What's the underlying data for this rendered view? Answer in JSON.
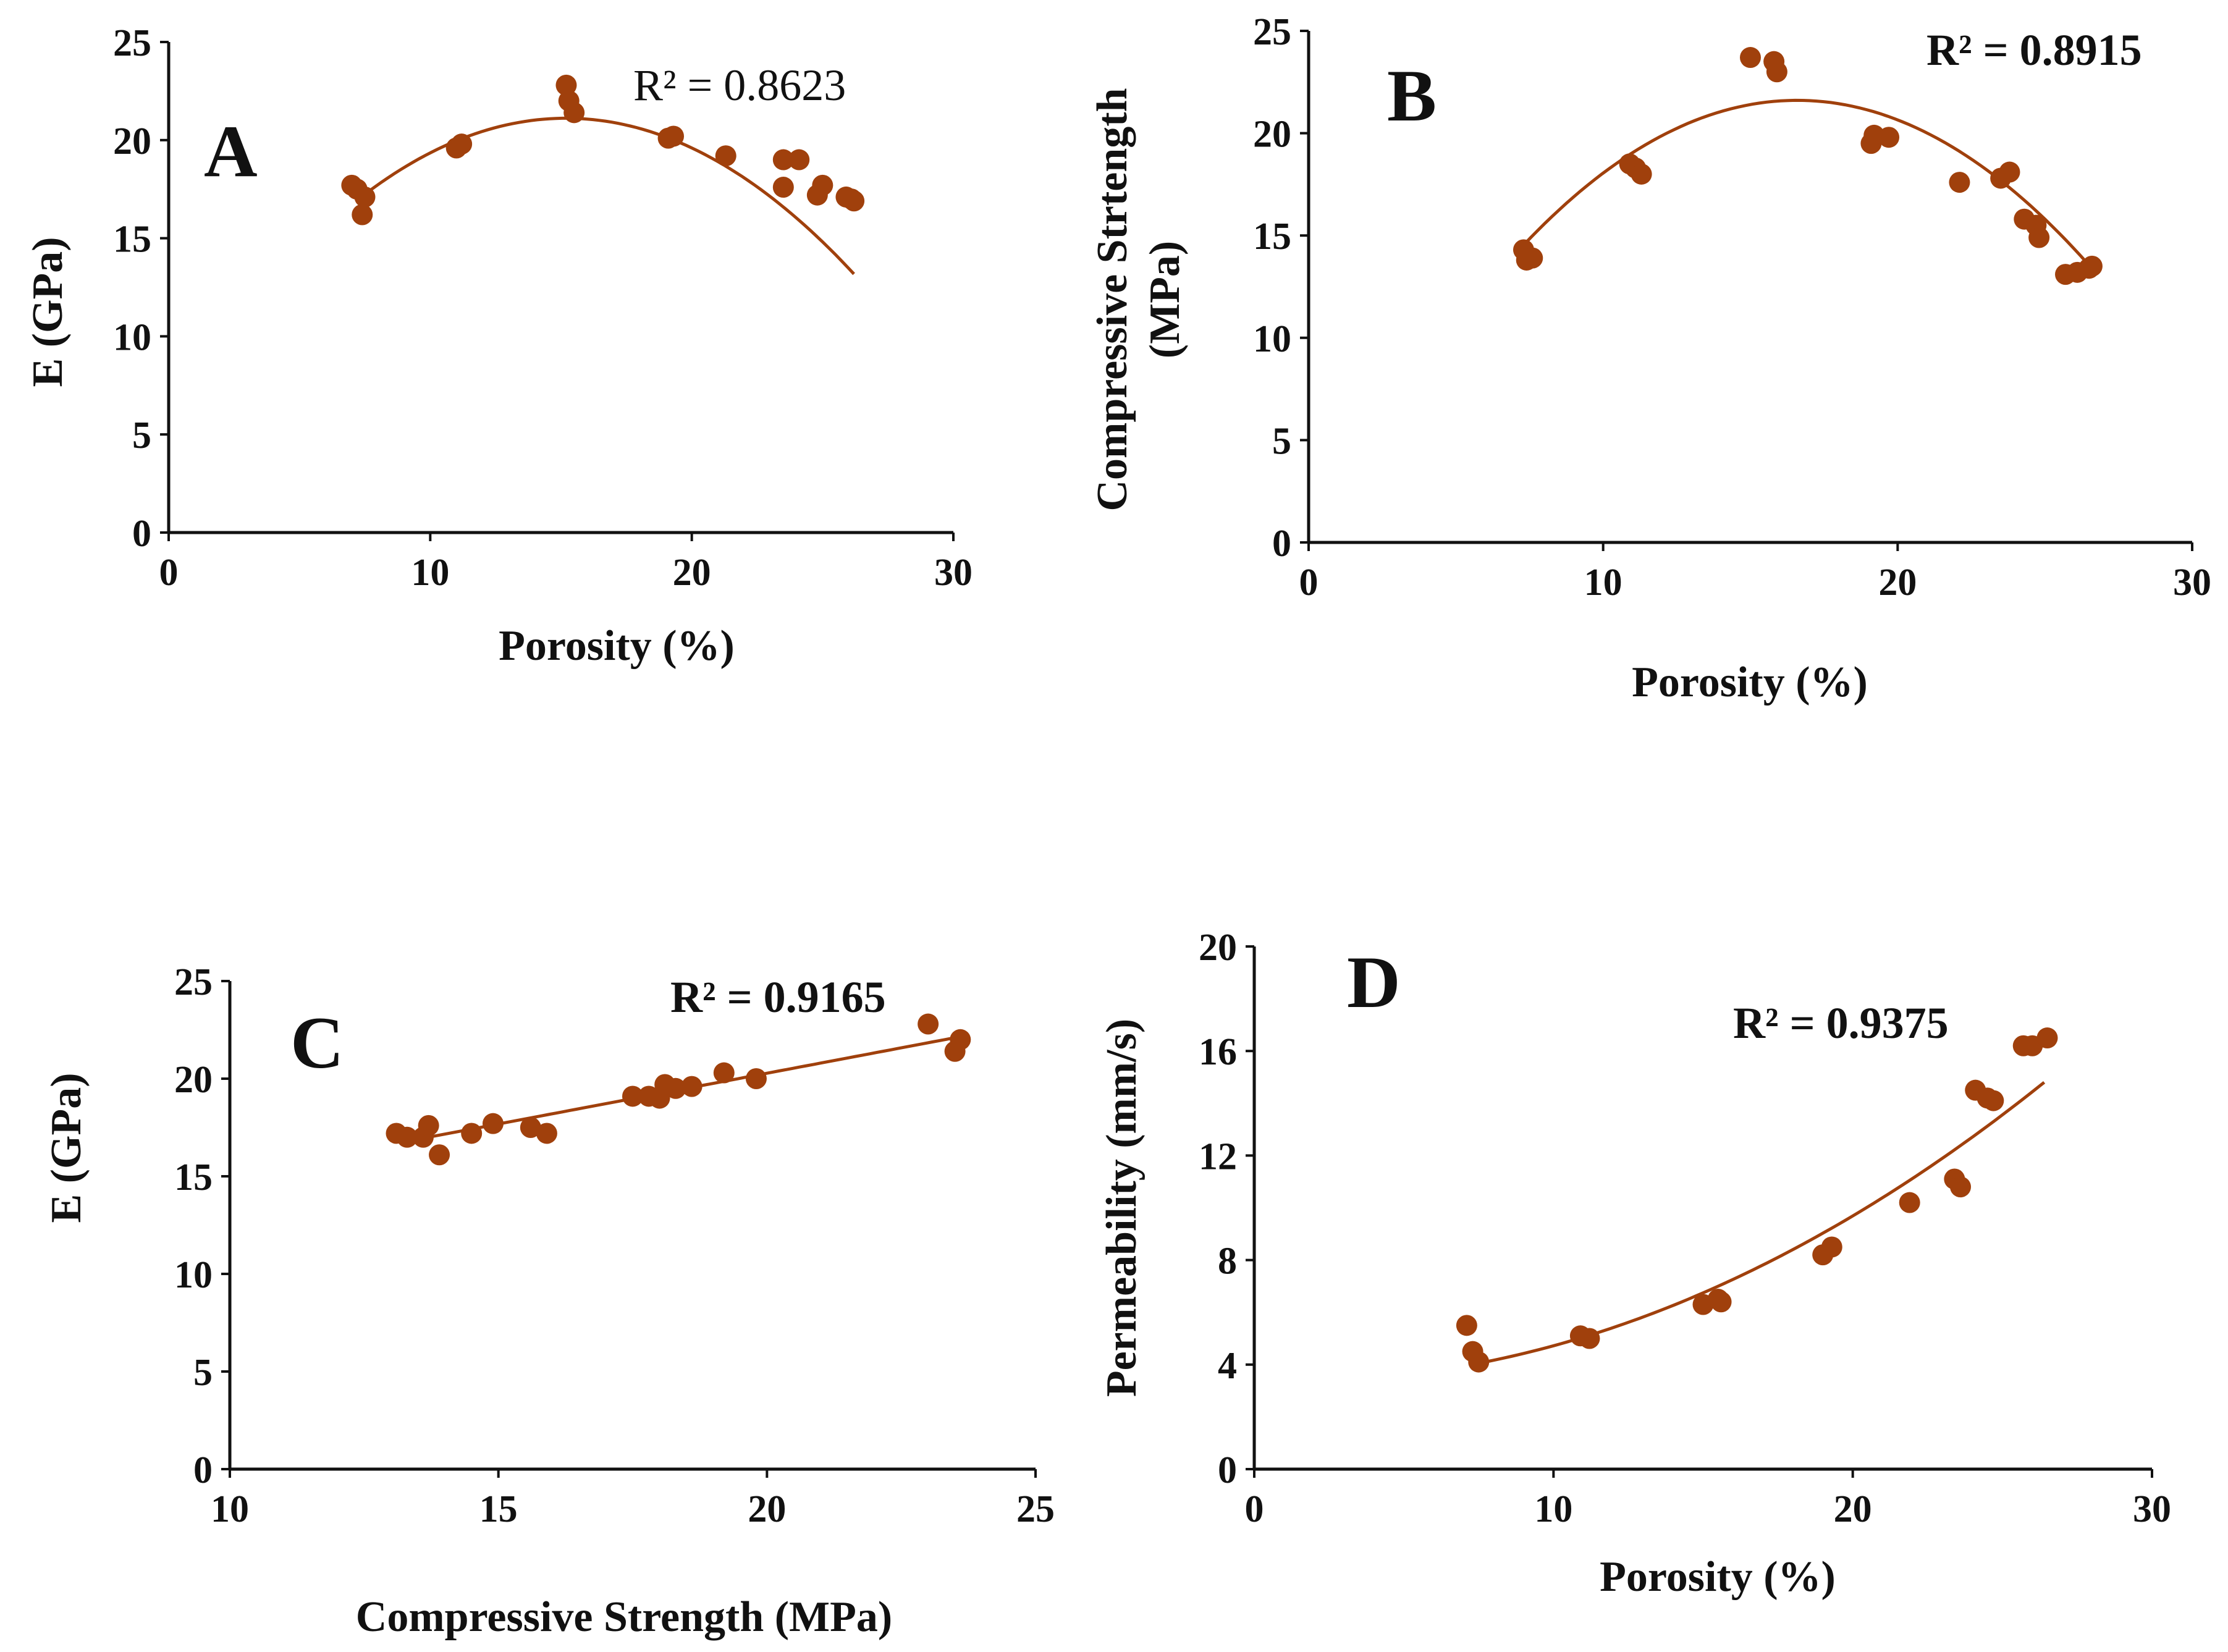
{
  "chart_data": [
    {
      "id": "A",
      "type": "scatter",
      "panel_label": "A",
      "xlabel": "Porosity (%)",
      "ylabel": "E (GPa)",
      "xlim": [
        0,
        30
      ],
      "ylim": [
        0,
        25
      ],
      "xticks": [
        "0",
        "10",
        "20",
        "30"
      ],
      "yticks": [
        "0",
        "5",
        "10",
        "15",
        "20",
        "25"
      ],
      "annotation": "R² = 0.8623",
      "marker_color": "#a0400c",
      "trend": {
        "type": "poly2",
        "coeffs": [
          6.0,
          1.99,
          -0.0655
        ],
        "x_range": [
          7.2,
          26.2
        ]
      },
      "points": [
        [
          7.0,
          17.7
        ],
        [
          7.2,
          17.5
        ],
        [
          7.4,
          16.2
        ],
        [
          7.5,
          17.1
        ],
        [
          11.0,
          19.6
        ],
        [
          11.2,
          19.8
        ],
        [
          15.2,
          22.8
        ],
        [
          15.3,
          22.0
        ],
        [
          15.5,
          21.4
        ],
        [
          19.1,
          20.1
        ],
        [
          19.3,
          20.2
        ],
        [
          21.3,
          19.2
        ],
        [
          23.5,
          19.0
        ],
        [
          23.5,
          17.6
        ],
        [
          24.1,
          19.0
        ],
        [
          24.8,
          17.2
        ],
        [
          25.0,
          17.7
        ],
        [
          25.9,
          17.1
        ],
        [
          26.1,
          17.0
        ],
        [
          26.2,
          16.9
        ]
      ],
      "grid": false
    },
    {
      "id": "B",
      "type": "scatter",
      "panel_label": "B",
      "xlabel": "Porosity (%)",
      "ylabel": "Compressive Strtength (MPa)",
      "ylabel_lines": [
        "Compressive Strtength",
        "(MPa)"
      ],
      "xlim": [
        0,
        30
      ],
      "ylim": [
        0,
        25
      ],
      "xticks": [
        "0",
        "10",
        "20",
        "30"
      ],
      "yticks": [
        "0",
        "5",
        "10",
        "15",
        "20",
        "25"
      ],
      "annotation": "R² = 0.8915",
      "marker_color": "#a0400c",
      "trend": {
        "type": "poly2",
        "coeffs": [
          -0.95,
          2.72,
          -0.082
        ],
        "x_range": [
          7.3,
          26.7
        ]
      },
      "points": [
        [
          7.3,
          14.3
        ],
        [
          7.4,
          13.8
        ],
        [
          7.6,
          13.9
        ],
        [
          10.9,
          18.5
        ],
        [
          11.1,
          18.3
        ],
        [
          11.3,
          18.0
        ],
        [
          15.0,
          23.7
        ],
        [
          15.8,
          23.5
        ],
        [
          15.9,
          23.0
        ],
        [
          19.1,
          19.5
        ],
        [
          19.2,
          19.9
        ],
        [
          19.7,
          19.8
        ],
        [
          22.1,
          17.6
        ],
        [
          23.5,
          17.8
        ],
        [
          23.8,
          18.1
        ],
        [
          24.3,
          15.8
        ],
        [
          24.7,
          15.5
        ],
        [
          24.8,
          14.9
        ],
        [
          25.7,
          13.1
        ],
        [
          26.1,
          13.2
        ],
        [
          26.5,
          13.4
        ],
        [
          26.6,
          13.5
        ]
      ],
      "grid": false
    },
    {
      "id": "C",
      "type": "scatter",
      "panel_label": "C",
      "xlabel": "Compressive Strength (MPa)",
      "ylabel": "E (GPa)",
      "xlim": [
        10,
        25
      ],
      "ylim": [
        0,
        25
      ],
      "xticks": [
        "10",
        "15",
        "20",
        "25"
      ],
      "yticks": [
        "0",
        "5",
        "10",
        "15",
        "20",
        "25"
      ],
      "annotation": "R² = 0.9165",
      "marker_color": "#a0400c",
      "trend": {
        "type": "linear",
        "coeffs": [
          9.88,
          0.52
        ],
        "x_range": [
          13.2,
          23.6
        ]
      },
      "points": [
        [
          13.1,
          17.2
        ],
        [
          13.3,
          17.0
        ],
        [
          13.6,
          17.0
        ],
        [
          13.7,
          17.6
        ],
        [
          13.9,
          16.1
        ],
        [
          14.5,
          17.2
        ],
        [
          14.9,
          17.7
        ],
        [
          15.6,
          17.5
        ],
        [
          15.9,
          17.2
        ],
        [
          17.5,
          19.1
        ],
        [
          17.8,
          19.1
        ],
        [
          18.0,
          19.0
        ],
        [
          18.1,
          19.7
        ],
        [
          18.3,
          19.5
        ],
        [
          18.6,
          19.6
        ],
        [
          19.2,
          20.3
        ],
        [
          19.8,
          20.0
        ],
        [
          23.0,
          22.8
        ],
        [
          23.5,
          21.4
        ],
        [
          23.6,
          22.0
        ]
      ],
      "grid": false
    },
    {
      "id": "D",
      "type": "scatter",
      "panel_label": "D",
      "xlabel": "Porosity (%)",
      "ylabel": "Permeability (mm/s)",
      "xlim": [
        0,
        30
      ],
      "ylim": [
        0,
        20
      ],
      "xticks": [
        "0",
        "10",
        "20",
        "30"
      ],
      "yticks": [
        "0",
        "4",
        "8",
        "12",
        "16",
        "20"
      ],
      "annotation": "R² = 0.9375",
      "marker_color": "#a0400c",
      "trend": {
        "type": "poly2",
        "coeffs": [
          3.43,
          -0.055,
          0.0184
        ],
        "x_range": [
          7.4,
          26.4
        ]
      },
      "points": [
        [
          7.1,
          5.5
        ],
        [
          7.3,
          4.5
        ],
        [
          7.5,
          4.1
        ],
        [
          10.9,
          5.1
        ],
        [
          11.2,
          5.0
        ],
        [
          15.0,
          6.3
        ],
        [
          15.5,
          6.5
        ],
        [
          15.6,
          6.4
        ],
        [
          19.0,
          8.2
        ],
        [
          19.3,
          8.5
        ],
        [
          21.9,
          10.2
        ],
        [
          23.4,
          11.1
        ],
        [
          23.6,
          10.8
        ],
        [
          24.1,
          14.5
        ],
        [
          24.5,
          14.2
        ],
        [
          24.7,
          14.1
        ],
        [
          25.7,
          16.2
        ],
        [
          26.0,
          16.2
        ],
        [
          26.5,
          16.5
        ]
      ],
      "grid": false
    }
  ]
}
